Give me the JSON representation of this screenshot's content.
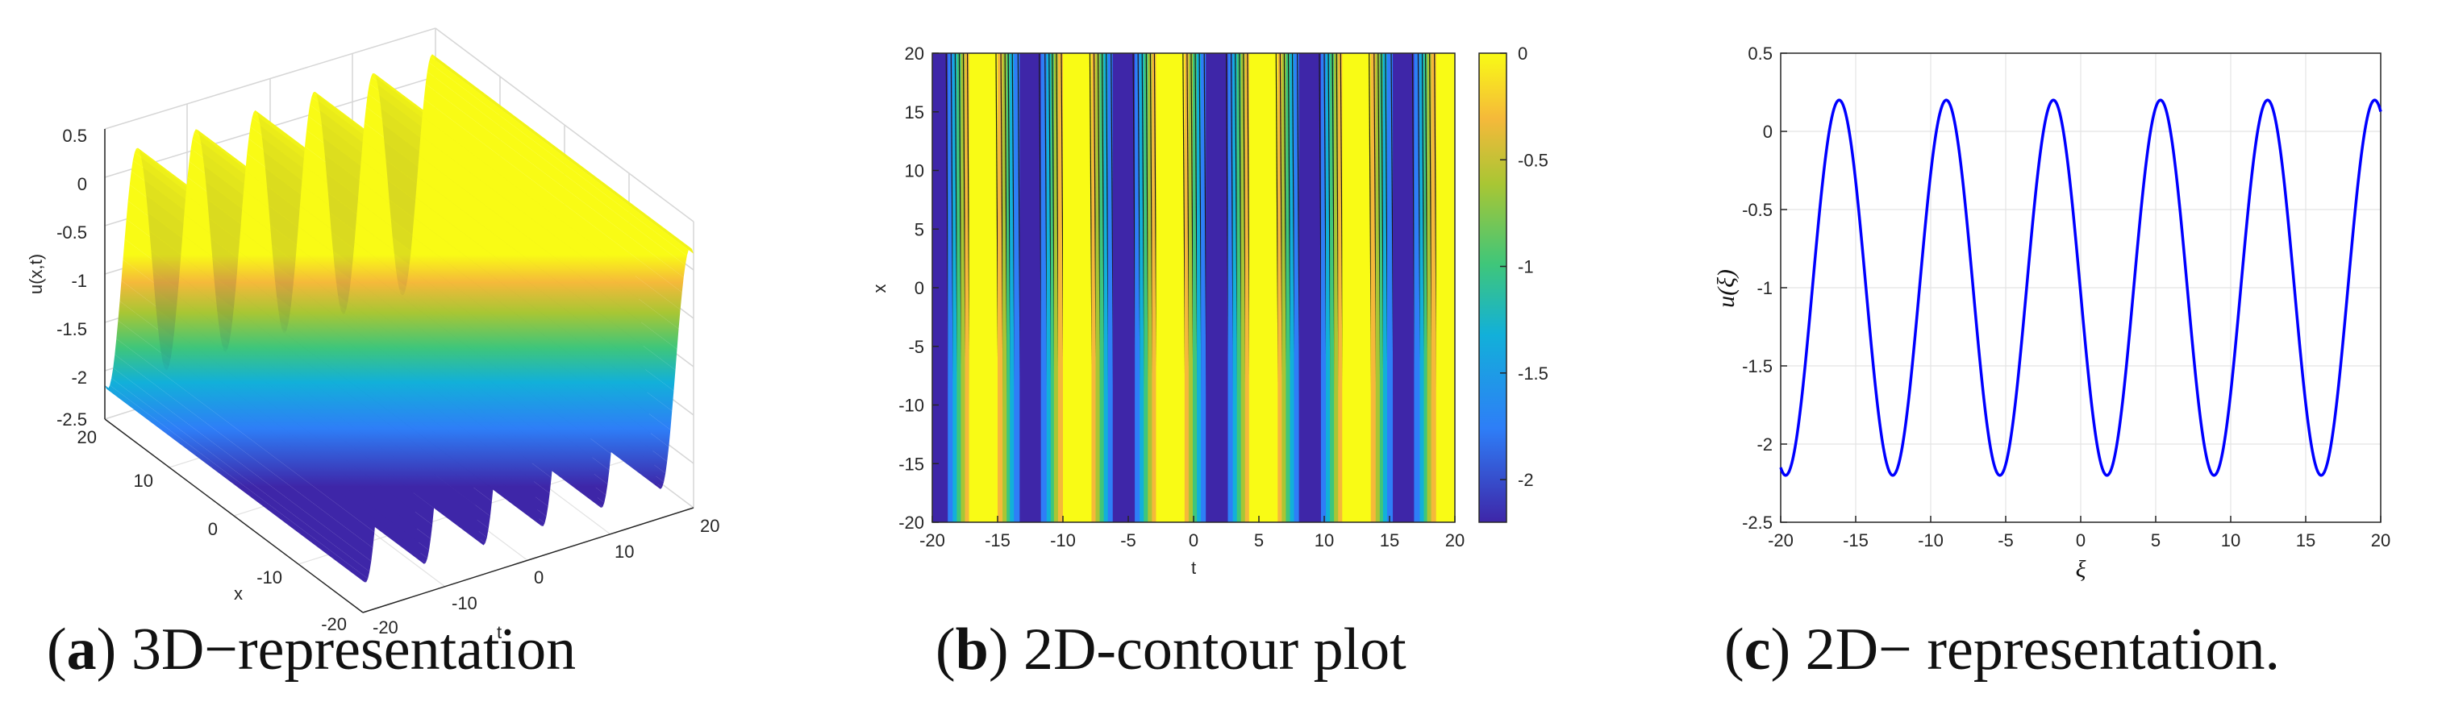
{
  "chart_data": [
    {
      "type": "surface",
      "panel": "a",
      "caption_letter": "a",
      "caption_text": "3D−representation",
      "zlabel": "u(x,t)",
      "xlabel": "x",
      "ylabel": "t",
      "x_ticks": [
        "20",
        "10",
        "0",
        "-10",
        "-20"
      ],
      "t_ticks": [
        "-20",
        "-10",
        "0",
        "10",
        "20"
      ],
      "z_ticks": [
        "0.5",
        "0",
        "-0.5",
        "-1",
        "-1.5",
        "-2",
        "-2.5"
      ],
      "xlim": [
        -20,
        20
      ],
      "tlim": [
        -20,
        20
      ],
      "zlim": [
        -2.5,
        0.5
      ],
      "grid": true,
      "colormap": [
        "#3e26a8",
        "#2e7ef7",
        "#12b0d9",
        "#3fc67a",
        "#a8c634",
        "#f5b93a",
        "#f9fb15"
      ]
    },
    {
      "type": "contour",
      "panel": "b",
      "caption_letter": "b",
      "caption_text": "2D-contour plot",
      "xlabel": "t",
      "ylabel": "x",
      "xlim": [
        -20,
        20
      ],
      "ylim": [
        -20,
        20
      ],
      "x_ticks": [
        "-20",
        "-15",
        "-10",
        "-5",
        "0",
        "5",
        "10",
        "15",
        "20"
      ],
      "y_ticks": [
        "20",
        "15",
        "10",
        "5",
        "0",
        "-5",
        "-10",
        "-15",
        "-20"
      ],
      "colorbar_ticks": [
        "0",
        "-0.5",
        "-1",
        "-1.5",
        "-2"
      ],
      "colorbar_range": [
        -2.2,
        0
      ],
      "colormap": [
        "#3e26a8",
        "#2e7ef7",
        "#12b0d9",
        "#3fc67a",
        "#a8c634",
        "#f5b93a",
        "#f9fb15"
      ]
    },
    {
      "type": "line",
      "panel": "c",
      "caption_letter": "c",
      "caption_text": "2D− representation.",
      "xlabel": "ξ",
      "ylabel": "u(ξ)",
      "xlim": [
        -20,
        20
      ],
      "ylim": [
        -2.5,
        0.5
      ],
      "x_ticks": [
        "-20",
        "-15",
        "-10",
        "-5",
        "0",
        "5",
        "10",
        "15",
        "20"
      ],
      "y_ticks": [
        "0.5",
        "0",
        "-0.5",
        "-1",
        "-1.5",
        "-2",
        "-2.5"
      ],
      "grid": true,
      "line_color": "#0000ff",
      "peaks_x": [
        -16.1,
        -9.0,
        -1.8,
        5.3,
        12.5,
        19.6
      ],
      "troughs_x": [
        -19.7,
        -12.6,
        -5.4,
        1.8,
        8.9,
        16.1
      ],
      "max": 0.2,
      "min": -2.2
    }
  ]
}
